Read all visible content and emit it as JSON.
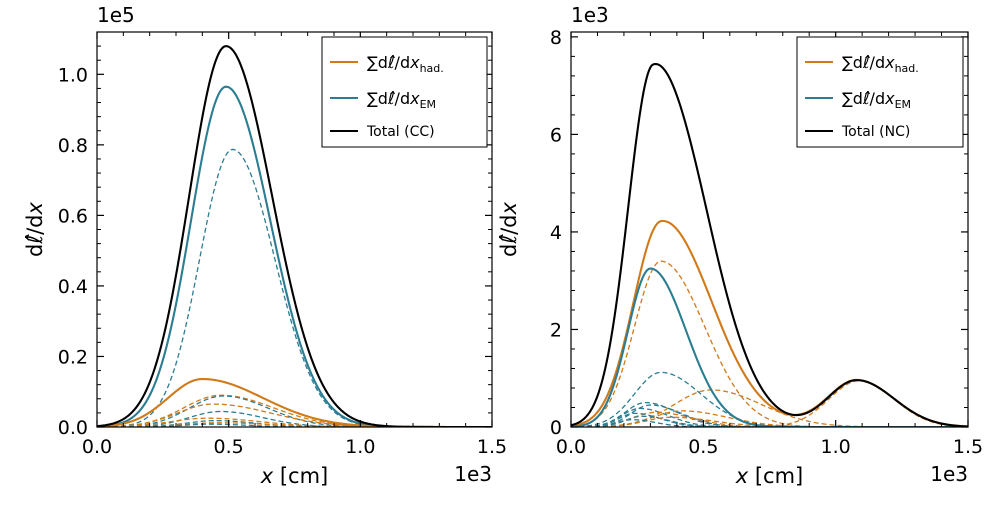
{
  "colors": {
    "had": "#d07a1a",
    "em": "#2c7d92",
    "total": "#000000"
  },
  "chart_data": [
    {
      "type": "line",
      "name": "left-panel",
      "xlabel_var": "x",
      "xlabel_unit": "[cm]",
      "ylabel_prefix": "d",
      "ylabel_symbol": "ℓ̂",
      "ylabel_suffix": "/d",
      "ylabel_var": "x",
      "xlim": [
        0,
        1500
      ],
      "ylim": [
        0,
        112000
      ],
      "x_multiplier": "1e3",
      "y_multiplier": "1e5",
      "xticks": [
        0,
        500,
        1000,
        1500
      ],
      "xtick_labels": [
        "0.0",
        "0.5",
        "1.0",
        "1.5"
      ],
      "yticks": [
        0,
        20000,
        40000,
        60000,
        80000,
        100000
      ],
      "ytick_labels": [
        "0.0",
        "0.2",
        "0.4",
        "0.6",
        "0.8",
        "1.0"
      ],
      "legend_position": "top-right",
      "legend": [
        {
          "key": "had",
          "prefix": "∑d",
          "symbol": "ℓ̂",
          "mid": "/d",
          "var": "x",
          "sub": "had."
        },
        {
          "key": "em",
          "prefix": "∑d",
          "symbol": "ℓ̂",
          "mid": "/d",
          "var": "x",
          "sub": "EM"
        },
        {
          "key": "total",
          "label": "Total (CC)"
        }
      ],
      "curves": [
        {
          "role": "total",
          "style": "solid",
          "components": [
            [
              108000,
              490,
              140,
              175
            ]
          ]
        },
        {
          "role": "em",
          "style": "solid",
          "components": [
            [
              96500,
              490,
              133,
              168
            ]
          ]
        },
        {
          "role": "em",
          "style": "dashed",
          "components": [
            [
              78700,
              515,
              125,
              160
            ]
          ]
        },
        {
          "role": "had",
          "style": "solid",
          "components": [
            [
              13600,
              400,
              130,
              230
            ]
          ]
        },
        {
          "role": "had",
          "style": "dashed",
          "components": [
            [
              9000,
              470,
              140,
              200
            ]
          ]
        },
        {
          "role": "em",
          "style": "dashed",
          "components": [
            [
              8800,
              480,
              130,
              170
            ]
          ]
        },
        {
          "role": "had",
          "style": "dashed",
          "components": [
            [
              6500,
              440,
              135,
              220
            ]
          ]
        },
        {
          "role": "em",
          "style": "dashed",
          "components": [
            [
              4400,
              470,
              120,
              160
            ]
          ]
        },
        {
          "role": "had",
          "style": "dashed",
          "components": [
            [
              2500,
              420,
              140,
              200
            ]
          ]
        },
        {
          "role": "em",
          "style": "dashed",
          "components": [
            [
              1800,
              450,
              110,
              150
            ]
          ]
        },
        {
          "role": "had",
          "style": "dashed",
          "components": [
            [
              1200,
              460,
              120,
              190
            ]
          ]
        },
        {
          "role": "em",
          "style": "dashed",
          "components": [
            [
              800,
              430,
              100,
              140
            ]
          ]
        }
      ]
    },
    {
      "type": "line",
      "name": "right-panel",
      "xlabel_var": "x",
      "xlabel_unit": "[cm]",
      "ylabel_prefix": "d",
      "ylabel_symbol": "ℓ̂",
      "ylabel_suffix": "/d",
      "ylabel_var": "x",
      "xlim": [
        0,
        1500
      ],
      "ylim": [
        0,
        8100
      ],
      "x_multiplier": "1e3",
      "y_multiplier": "1e3",
      "xticks": [
        0,
        500,
        1000,
        1500
      ],
      "xtick_labels": [
        "0.0",
        "0.5",
        "1.0",
        "1.5"
      ],
      "yticks": [
        0,
        2000,
        4000,
        6000,
        8000
      ],
      "ytick_labels": [
        "0",
        "2",
        "4",
        "6",
        "8"
      ],
      "legend_position": "top-right",
      "legend": [
        {
          "key": "had",
          "prefix": "∑d",
          "symbol": "ℓ̂",
          "mid": "/d",
          "var": "x",
          "sub": "had."
        },
        {
          "key": "em",
          "prefix": "∑d",
          "symbol": "ℓ̂",
          "mid": "/d",
          "var": "x",
          "sub": "EM"
        },
        {
          "key": "total",
          "label": "Total (NC)"
        }
      ],
      "curves": [
        {
          "role": "total",
          "style": "solid",
          "components": [
            [
              7300,
              310,
              95,
              175
            ],
            [
              720,
              530,
              120,
              150
            ],
            [
              960,
              1080,
              110,
              140
            ]
          ]
        },
        {
          "role": "had",
          "style": "solid",
          "components": [
            [
              4150,
              340,
              105,
              175
            ],
            [
              300,
              560,
              130,
              180
            ],
            [
              960,
              1080,
              110,
              140
            ]
          ]
        },
        {
          "role": "had",
          "style": "dashed",
          "components": [
            [
              3400,
              340,
              100,
              165
            ]
          ]
        },
        {
          "role": "em",
          "style": "solid",
          "components": [
            [
              3250,
              300,
              85,
              135
            ]
          ]
        },
        {
          "role": "em",
          "style": "dashed",
          "components": [
            [
              1120,
              340,
              100,
              150
            ]
          ]
        },
        {
          "role": "had",
          "style": "dashed",
          "components": [
            [
              760,
              530,
              140,
              190
            ]
          ]
        },
        {
          "role": "had",
          "style": "dashed",
          "components": [
            [
              950,
              1090,
              115,
              130
            ]
          ]
        },
        {
          "role": "em",
          "style": "dashed",
          "components": [
            [
              500,
              280,
              75,
              120
            ]
          ]
        },
        {
          "role": "em",
          "style": "dashed",
          "components": [
            [
              450,
              300,
              75,
              120
            ]
          ]
        },
        {
          "role": "em",
          "style": "dashed",
          "components": [
            [
              380,
              260,
              70,
              110
            ]
          ]
        },
        {
          "role": "had",
          "style": "dashed",
          "components": [
            [
              330,
              420,
              110,
              170
            ]
          ]
        },
        {
          "role": "had",
          "style": "dashed",
          "components": [
            [
              300,
              320,
              90,
              140
            ]
          ]
        },
        {
          "role": "em",
          "style": "dashed",
          "components": [
            [
              280,
              240,
              60,
              100
            ]
          ]
        },
        {
          "role": "em",
          "style": "dashed",
          "components": [
            [
              220,
              270,
              65,
              100
            ]
          ]
        },
        {
          "role": "had",
          "style": "dashed",
          "components": [
            [
              200,
              380,
              100,
              160
            ]
          ]
        },
        {
          "role": "em",
          "style": "dashed",
          "components": [
            [
              150,
              230,
              55,
              90
            ]
          ]
        }
      ]
    }
  ]
}
